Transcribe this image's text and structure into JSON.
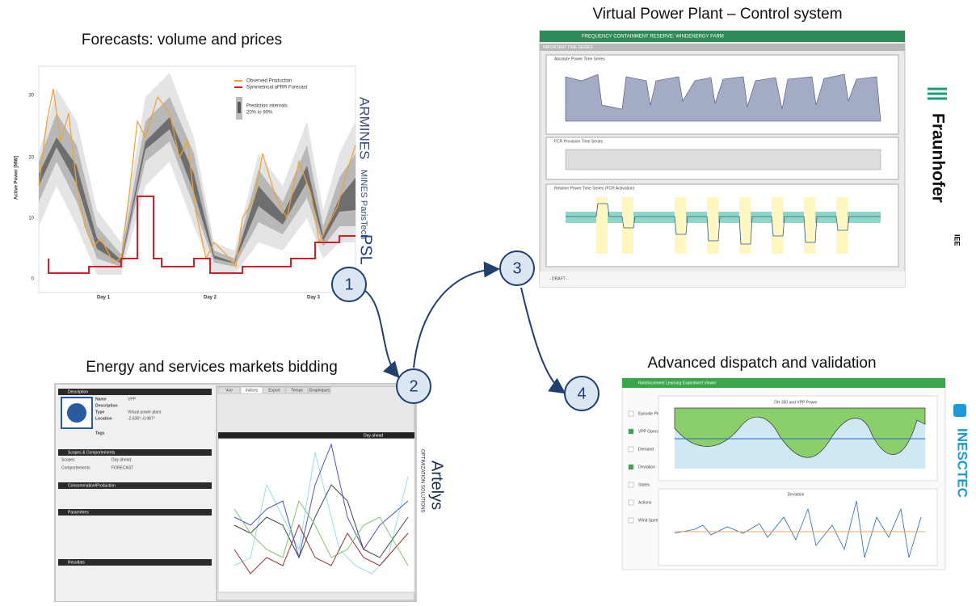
{
  "forecast": {
    "title": "Forecasts: volume and prices",
    "legend": [
      "Observed Production",
      "Symmetrical aFRR Forecast"
    ],
    "band_legend": [
      "Prediction intervals",
      "20% to 90%"
    ],
    "y_axis_label": "Active Power [MW]",
    "yticks": [
      "0",
      "10",
      "20",
      "30"
    ],
    "xticks": [
      "Day 1",
      "Day 2",
      "Day 3"
    ]
  },
  "control": {
    "title": "Virtual Power Plant – Control system",
    "header": "FREQUENCY CONTAINMENT RESERVE: WINDENERGY FARM",
    "subheader": "IMPORTANT TIME SERIES",
    "sections": [
      "Absolute Power Time Series",
      "FCR Provision Time Series",
      "Relative Power Time Series (FCR Activation)"
    ],
    "footer": "- DRAFT -"
  },
  "bidding": {
    "title": "Energy and services markets bidding",
    "left_headers": [
      "Description",
      "Scopes & Comportements",
      "Consommation/Production",
      "Paramètres",
      "Resultats"
    ],
    "fields": [
      "Name",
      "Description",
      "Type",
      "Location",
      "Tags"
    ],
    "field_values": [
      "VPP",
      "",
      "Virtual power plant",
      "-2,635°;-0,987°",
      ""
    ],
    "scopes": [
      "Scopes",
      "Day ahead",
      "Comportements",
      "FORECAST"
    ],
    "tabs": [
      "Vue",
      "Indices",
      "Export",
      "Temps",
      "Graphiques"
    ],
    "chart_title": "Day ahead"
  },
  "dispatch": {
    "title": "Advanced dispatch and validation",
    "app_title": "Reinforcement Learning Experiment Viewer",
    "charts": [
      "DH 350 and VPP Power",
      "Deviation"
    ],
    "options": [
      "Episode Plot",
      "VPP Operation",
      "Demand",
      "Deviation",
      "States",
      "Actions",
      "Wind Speed"
    ]
  },
  "steps": [
    "1",
    "2",
    "3",
    "4"
  ],
  "logos": {
    "armines": "ARMINES",
    "mines": "MINES ParisTech",
    "psl": "PSL",
    "fraunhofer": "Fraunhofer",
    "iee": "IEE",
    "artelys": "Artelys",
    "artelys_sub": "OPTIMIZATION SOLUTIONS",
    "inesctec": "INESCTEC"
  }
}
